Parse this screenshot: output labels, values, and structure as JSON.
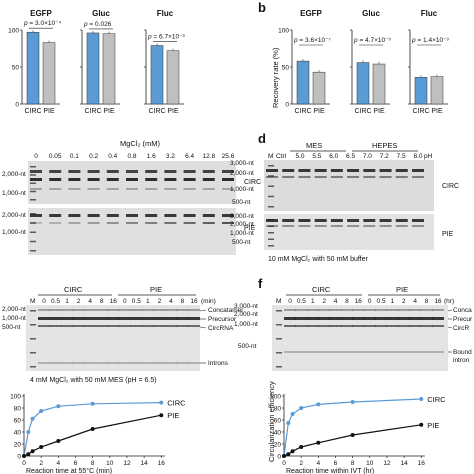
{
  "panels": {
    "b": "b",
    "d": "d",
    "f": "f"
  },
  "top_row": {
    "stat_prefix": "p",
    "x_categories": [
      "CIRC",
      "PIE"
    ],
    "y_label": "Recovery rate (%)",
    "y_ticks": [
      "100",
      "50",
      "0"
    ],
    "colors": {
      "circ": "#5b9bd5",
      "pie": "#bfbfbf",
      "pie_light": "#d9d9d9"
    }
  },
  "chart_data": [
    {
      "type": "bar",
      "title": "EGFP",
      "categories": [
        "CIRC",
        "PIE"
      ],
      "values": [
        97,
        83
      ],
      "p_value": "3.0×10⁻⁴",
      "ylim": [
        0,
        100
      ]
    },
    {
      "type": "bar",
      "title": "Gluc",
      "categories": [
        "CIRC",
        "PIE"
      ],
      "values": [
        96,
        95
      ],
      "p_value": "0.026",
      "ylim": [
        0,
        100
      ]
    },
    {
      "type": "bar",
      "title": "Fluc",
      "categories": [
        "CIRC",
        "PIE"
      ],
      "values": [
        79,
        72
      ],
      "p_value": "6.7×10⁻³",
      "ylim": [
        0,
        100
      ]
    },
    {
      "type": "bar",
      "title": "EGFP",
      "categories": [
        "CIRC",
        "PIE"
      ],
      "values": [
        58,
        43
      ],
      "p_value": "3.6×10⁻⁷",
      "ylim": [
        0,
        100
      ]
    },
    {
      "type": "bar",
      "title": "Gluc",
      "categories": [
        "CIRC",
        "PIE"
      ],
      "values": [
        56,
        54
      ],
      "p_value": "4.7×10⁻³",
      "ylim": [
        0,
        100
      ]
    },
    {
      "type": "bar",
      "title": "Fluc",
      "categories": [
        "CIRC",
        "PIE"
      ],
      "values": [
        36,
        37
      ],
      "p_value": "1.4×10⁻³",
      "ylim": [
        0,
        100
      ]
    },
    {
      "type": "line",
      "x": [
        0,
        0.5,
        1,
        2,
        4,
        8,
        16
      ],
      "series": [
        {
          "name": "CIRC",
          "values": [
            0,
            40,
            62,
            75,
            83,
            87,
            89
          ]
        },
        {
          "name": "PIE",
          "values": [
            0,
            3,
            8,
            15,
            25,
            45,
            68
          ]
        }
      ],
      "xlabel": "Reaction time at 55°C (min)",
      "x_ticks": [
        "0",
        "2",
        "4",
        "6",
        "8",
        "10",
        "12",
        "14",
        "16"
      ],
      "y_ticks": [
        "100",
        "80",
        "60",
        "40",
        "20",
        "0"
      ],
      "ylim": [
        0,
        100
      ]
    },
    {
      "type": "line",
      "x": [
        0,
        0.5,
        1,
        2,
        4,
        8,
        16
      ],
      "series": [
        {
          "name": "CIRC",
          "values": [
            0,
            55,
            70,
            80,
            86,
            90,
            95
          ]
        },
        {
          "name": "PIE",
          "values": [
            0,
            3,
            8,
            15,
            22,
            35,
            52
          ]
        }
      ],
      "xlabel": "Reaction time within IVT (hr)",
      "ylabel": "Circularization efficiency",
      "x_ticks": [
        "0",
        "2",
        "4",
        "6",
        "8",
        "10",
        "12",
        "14",
        "16"
      ],
      "y_ticks": [
        "100",
        "80",
        "60",
        "40",
        "20",
        "0"
      ],
      "ylim": [
        0,
        100
      ]
    }
  ],
  "gel_c": {
    "title": "MgCl₂ (mM)",
    "lanes": [
      "0",
      "0.05",
      "0.1",
      "0.2",
      "0.4",
      "0.8",
      "1.6",
      "3.2",
      "6.4",
      "12.8",
      "25.6"
    ],
    "markers": [
      "2,000-nt",
      "1,000-nt"
    ],
    "markers_bottom": [
      "2,000-nt",
      "1,000-nt"
    ],
    "rows": [
      "CIRC",
      "PIE"
    ]
  },
  "gel_d": {
    "m_label": "M",
    "ctrl_label": "Ctrl",
    "buffer_labels": [
      "MES",
      "HEPES"
    ],
    "lanes": [
      "5.0",
      "5.5",
      "6.0",
      "6.5",
      "7.0",
      "7.2",
      "7.5",
      "8.0"
    ],
    "ph_unit": "pH",
    "markers": [
      "3,000-nt",
      "2,000-nt",
      "1,000-nt",
      "500-nt"
    ],
    "markers_bottom": [
      "3,000-nt",
      "2,000-nt",
      "1,000-nt",
      "500-nt"
    ],
    "rows": [
      "CIRC",
      "PIE"
    ],
    "caption": "10 mM MgCl₂ with 50 mM buffer"
  },
  "gel_e": {
    "m_label": "M",
    "group_labels": [
      "CIRC",
      "PIE"
    ],
    "lanes": [
      "0",
      "0.5",
      "1",
      "2",
      "4",
      "8",
      "16",
      "0",
      "0.5",
      "1",
      "2",
      "4",
      "8",
      "16"
    ],
    "unit": "(min)",
    "markers": [
      "2,000-nt",
      "1,000-nt",
      "500-nt"
    ],
    "band_labels": [
      "Concatamer",
      "Precursor",
      "CircRNA",
      "Introns"
    ],
    "caption": "4 mM MgCl₂ with 50 mM MES (pH = 6.5)"
  },
  "gel_f": {
    "m_label": "M",
    "group_labels": [
      "CIRC",
      "PIE"
    ],
    "lanes": [
      "0",
      "0.5",
      "1",
      "2",
      "4",
      "8",
      "16",
      "0",
      "0.5",
      "1",
      "2",
      "4",
      "8",
      "16"
    ],
    "unit": "(hr)",
    "markers": [
      "3,000-nt",
      "2,000-nt",
      "1,000-nt",
      "500-nt"
    ],
    "band_labels": [
      "Conca",
      "Precur",
      "CircR",
      "Bound",
      "intron"
    ]
  }
}
